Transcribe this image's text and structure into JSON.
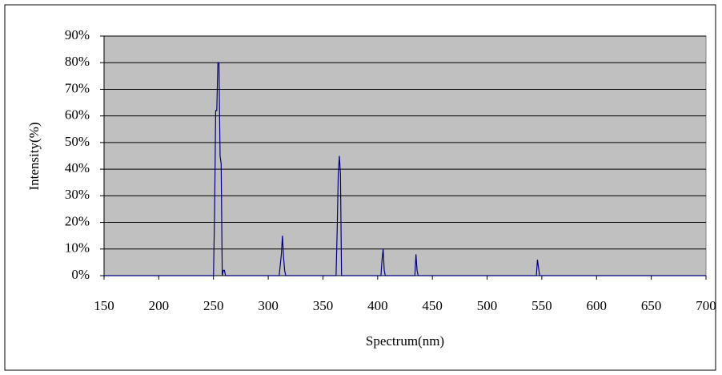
{
  "chart_data": {
    "type": "line",
    "x_label": "Spectrum(nm)",
    "y_label": "Intensity(%)",
    "x": [
      150,
      250,
      251,
      252,
      253,
      254,
      255,
      256,
      257,
      258,
      259,
      260,
      261,
      310,
      312,
      313,
      314,
      315,
      316,
      362,
      363,
      364,
      365,
      366,
      367,
      403,
      404,
      405,
      406,
      407,
      434,
      435,
      436,
      437,
      545,
      546,
      547,
      548,
      700
    ],
    "series": [
      {
        "color": "#000080",
        "values": [
          0,
          0,
          24,
          62,
          62,
          80,
          80,
          45,
          42,
          0,
          2,
          2,
          0,
          0,
          8,
          15,
          7,
          2,
          0,
          0,
          17,
          38,
          45,
          38,
          0,
          0,
          6,
          10,
          2,
          0,
          0,
          8,
          2,
          0,
          0,
          6,
          3,
          0,
          0
        ]
      }
    ],
    "xlim": [
      150,
      700
    ],
    "xticks": [
      150,
      200,
      250,
      300,
      350,
      400,
      450,
      500,
      550,
      600,
      650,
      700
    ],
    "ylim": [
      0,
      90
    ],
    "yticks": [
      {
        "value": 0,
        "label": "0%"
      },
      {
        "value": 10,
        "label": "10%"
      },
      {
        "value": 20,
        "label": "20%"
      },
      {
        "value": 30,
        "label": "30%"
      },
      {
        "value": 40,
        "label": "40%"
      },
      {
        "value": 50,
        "label": "50%"
      },
      {
        "value": 60,
        "label": "60%"
      },
      {
        "value": 70,
        "label": "70%"
      },
      {
        "value": 80,
        "label": "80%"
      },
      {
        "value": 90,
        "label": "90%"
      }
    ],
    "grid": true,
    "plot_background": "#c0c0c0"
  }
}
